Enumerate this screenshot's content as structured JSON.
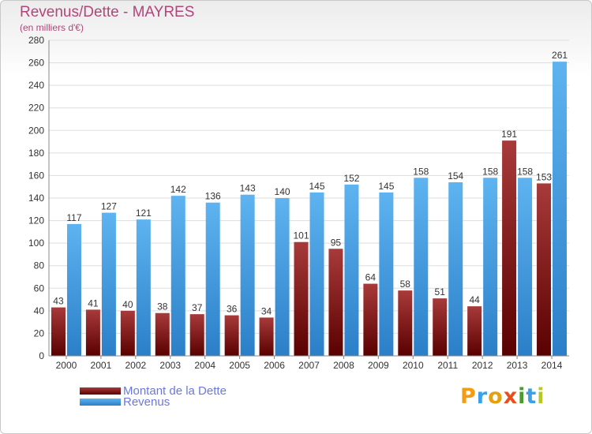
{
  "header": {
    "title": "Revenus/Dette - MAYRES",
    "subtitle": "(en milliers d'€)"
  },
  "legend": {
    "items": [
      {
        "label": "Montant de la Dette",
        "color": "#7a1a1a"
      },
      {
        "label": "Revenus",
        "color": "#4fa3e6"
      }
    ]
  },
  "logo": {
    "letters": [
      "P",
      "r",
      "o",
      "x",
      "i",
      "t",
      "i"
    ],
    "colors": [
      "#f39c12",
      "#3aa0e8",
      "#e4a010",
      "#e84f1c",
      "#4a9a2c",
      "#3aa0e8",
      "#b7c822"
    ]
  },
  "chart_data": {
    "type": "bar",
    "title": "Revenus/Dette - MAYRES",
    "subtitle": "(en milliers d'€)",
    "categories": [
      "2000",
      "2001",
      "2002",
      "2003",
      "2004",
      "2005",
      "2006",
      "2007",
      "2008",
      "2009",
      "2010",
      "2011",
      "2012",
      "2013",
      "2014"
    ],
    "series": [
      {
        "name": "Montant de la Dette",
        "color": "#7a1a1a",
        "values": [
          43,
          41,
          40,
          38,
          37,
          36,
          34,
          101,
          95,
          64,
          58,
          51,
          44,
          191,
          153
        ]
      },
      {
        "name": "Revenus",
        "color": "#4fa3e6",
        "values": [
          117,
          127,
          121,
          142,
          136,
          143,
          140,
          145,
          152,
          145,
          158,
          154,
          158,
          158,
          261
        ]
      }
    ],
    "ylim": [
      0,
      280
    ],
    "ytick_step": 20,
    "grid": true,
    "legend_position": "bottom-left"
  }
}
